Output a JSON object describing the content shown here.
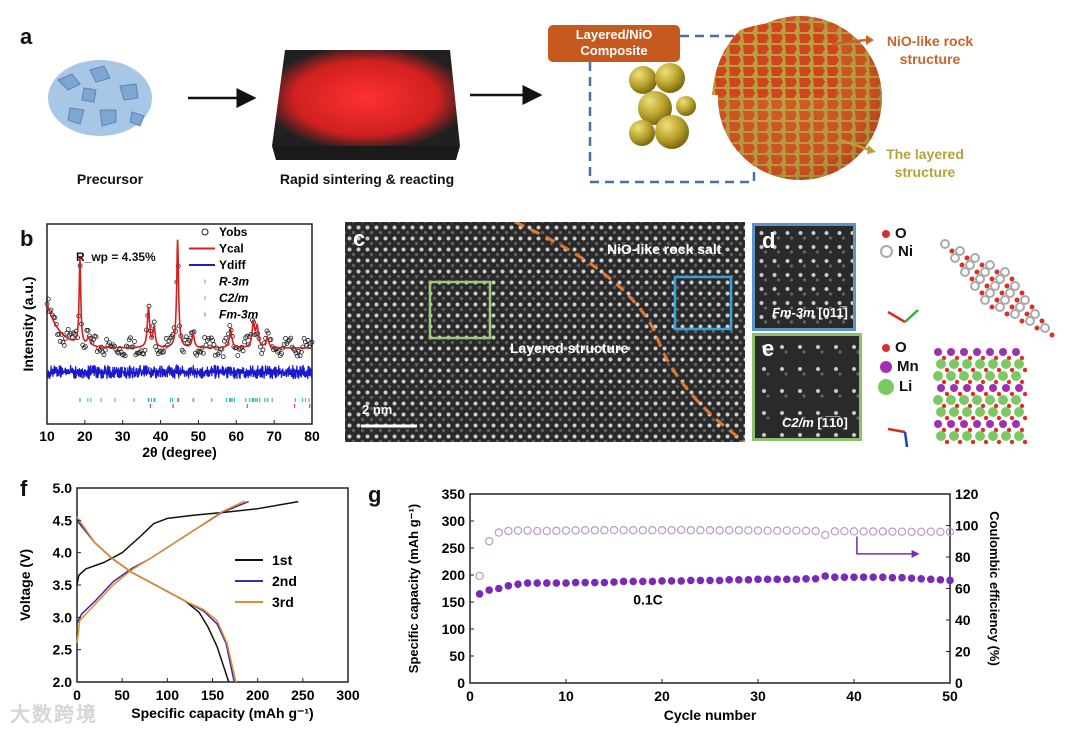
{
  "panels": {
    "a": "a",
    "b": "b",
    "c": "c",
    "d": "d",
    "e": "e",
    "f": "f",
    "g": "g"
  },
  "panel_a": {
    "precursor": "Precursor",
    "sintering": "Rapid sintering & reacting",
    "composite_box": [
      "Layered/NiO",
      "Composite"
    ],
    "rock_label": [
      "NiO-like rock",
      "structure"
    ],
    "layered_label": [
      "The layered",
      "structure"
    ],
    "colors": {
      "box": "#c65a1e",
      "rock": "#c8642a",
      "layered": "#b5a23a",
      "dash": "#4a6fa5"
    }
  },
  "panel_c": {
    "rock_salt": "NiO-like rock salt",
    "layered": "Layered structure",
    "scale": "2 nm"
  },
  "panel_d": {
    "label_group": "Fm-3m",
    "label_zone": "[011̅]",
    "legend": [
      {
        "name": "O",
        "color": "#d9302a"
      },
      {
        "name": "Ni",
        "color": "#bdbdbd"
      }
    ]
  },
  "panel_e": {
    "label_group": "C2/m",
    "label_zone": "[1̅1̅0]",
    "legend": [
      {
        "name": "O",
        "color": "#d9302a"
      },
      {
        "name": "Mn",
        "color": "#a030b0"
      },
      {
        "name": "Li",
        "color": "#7cc964"
      }
    ]
  },
  "chart_data": [
    {
      "id": "b",
      "type": "line",
      "xlabel": "2θ (degree)",
      "ylabel": "Intensity (a.u.)",
      "xlim": [
        10,
        80
      ],
      "xticks": [
        10,
        20,
        30,
        40,
        50,
        60,
        70,
        80
      ],
      "annotation": "R_wp = 4.35%",
      "annotation_main": "R",
      "annotation_sub": "wp",
      "annotation_rest": "= 4.35%",
      "legend": [
        {
          "name": "Yobs",
          "color": "#222222",
          "style": "circle"
        },
        {
          "name": "Ycal",
          "color": "#d42020",
          "style": "line"
        },
        {
          "name": "Ydiff",
          "color": "#1a1acc",
          "style": "line"
        },
        {
          "name": "R-3m",
          "color": "#888888",
          "style": "tick"
        },
        {
          "name": "C2/m",
          "color": "#30c0d0",
          "style": "tick"
        },
        {
          "name": "Fm-3m",
          "color": "#d040a0",
          "style": "tick"
        }
      ],
      "background": {
        "base": 38,
        "start": 60,
        "decay": 3.5
      },
      "peaks": [
        [
          18.7,
          44,
          0.25
        ],
        [
          21,
          4,
          0.5
        ],
        [
          36.8,
          20,
          0.35
        ],
        [
          38.3,
          10,
          0.35
        ],
        [
          44.5,
          54,
          0.3
        ],
        [
          48.6,
          7,
          0.35
        ],
        [
          58.5,
          9,
          0.4
        ],
        [
          64.5,
          12,
          0.4
        ],
        [
          65.5,
          10,
          0.4
        ],
        [
          68.2,
          5,
          0.4
        ]
      ],
      "diff_level": 26,
      "ticks_R3m": [
        18.7,
        36.8,
        38.3,
        44.5,
        48.6,
        58.5,
        64.5,
        65.5,
        68.2
      ],
      "ticks_C2m": [
        20.8,
        21.6,
        24.3,
        28,
        33,
        36.9,
        37.6,
        38.5,
        42.6,
        43.2,
        44.8,
        48.7,
        53.5,
        57.4,
        58.2,
        58.9,
        59.5,
        62.5,
        63.5,
        64.2,
        65,
        66.2,
        67.5,
        68.3,
        69.5,
        75.6,
        77.5,
        78.3,
        79.2
      ],
      "ticks_Fm3m": [
        37.3,
        43.3,
        62.9,
        75.4,
        79.4
      ]
    },
    {
      "id": "f",
      "type": "line",
      "xlabel": "Specific capacity (mAh g⁻¹)",
      "ylabel": "Voltage (V)",
      "xlim": [
        0,
        300
      ],
      "ylim": [
        2.0,
        5.0
      ],
      "xticks": [
        0,
        50,
        100,
        150,
        200,
        250,
        300
      ],
      "yticks": [
        "2.0",
        "2.5",
        "3.0",
        "3.5",
        "4.0",
        "4.5",
        "5.0"
      ],
      "series": [
        {
          "name": "1st",
          "color": "#111111",
          "charge": [
            [
              0,
              3.5
            ],
            [
              2,
              3.65
            ],
            [
              10,
              3.75
            ],
            [
              30,
              3.85
            ],
            [
              50,
              4.0
            ],
            [
              70,
              4.25
            ],
            [
              85,
              4.45
            ],
            [
              100,
              4.53
            ],
            [
              130,
              4.58
            ],
            [
              160,
              4.62
            ],
            [
              200,
              4.68
            ],
            [
              245,
              4.79
            ]
          ],
          "discharge": [
            [
              0,
              4.5
            ],
            [
              20,
              4.15
            ],
            [
              40,
              3.9
            ],
            [
              60,
              3.7
            ],
            [
              80,
              3.55
            ],
            [
              100,
              3.4
            ],
            [
              120,
              3.25
            ],
            [
              135,
              3.08
            ],
            [
              145,
              2.85
            ],
            [
              155,
              2.55
            ],
            [
              168,
              2.0
            ]
          ]
        },
        {
          "name": "2nd",
          "color": "#3a2ab0",
          "charge": [
            [
              0,
              2.9
            ],
            [
              5,
              3.05
            ],
            [
              20,
              3.25
            ],
            [
              40,
              3.55
            ],
            [
              60,
              3.75
            ],
            [
              80,
              3.9
            ],
            [
              100,
              4.08
            ],
            [
              130,
              4.35
            ],
            [
              160,
              4.62
            ],
            [
              190,
              4.79
            ]
          ],
          "discharge": [
            [
              0,
              4.5
            ],
            [
              20,
              4.15
            ],
            [
              40,
              3.9
            ],
            [
              60,
              3.7
            ],
            [
              80,
              3.55
            ],
            [
              100,
              3.4
            ],
            [
              120,
              3.25
            ],
            [
              140,
              3.1
            ],
            [
              155,
              2.9
            ],
            [
              165,
              2.6
            ],
            [
              174,
              2.0
            ]
          ]
        },
        {
          "name": "3rd",
          "color": "#e0902a",
          "charge": [
            [
              0,
              2.6
            ],
            [
              3,
              2.95
            ],
            [
              20,
              3.2
            ],
            [
              40,
              3.5
            ],
            [
              60,
              3.73
            ],
            [
              80,
              3.9
            ],
            [
              100,
              4.08
            ],
            [
              130,
              4.35
            ],
            [
              160,
              4.63
            ],
            [
              186,
              4.8
            ]
          ],
          "discharge": [
            [
              0,
              4.55
            ],
            [
              20,
              4.15
            ],
            [
              40,
              3.9
            ],
            [
              60,
              3.7
            ],
            [
              80,
              3.55
            ],
            [
              100,
              3.4
            ],
            [
              120,
              3.25
            ],
            [
              140,
              3.12
            ],
            [
              155,
              2.95
            ],
            [
              166,
              2.6
            ],
            [
              176,
              2.0
            ]
          ]
        }
      ]
    },
    {
      "id": "g",
      "type": "scatter",
      "xlabel": "Cycle number",
      "ylabel": "Specific capacity (mAh g⁻¹)",
      "y2label": "Coulombic efficiency (%)",
      "xlim": [
        0,
        50
      ],
      "ylim": [
        0,
        350
      ],
      "y2lim": [
        0,
        120
      ],
      "xticks": [
        0,
        10,
        20,
        30,
        40,
        50
      ],
      "yticks": [
        0,
        50,
        100,
        150,
        200,
        250,
        300,
        350
      ],
      "y2ticks": [
        0,
        20,
        40,
        60,
        80,
        100,
        120
      ],
      "annotation": "0.1C",
      "capacity_color": "#7a2ab8",
      "ce_color": "#b89ac8",
      "cycles": [
        1,
        2,
        3,
        4,
        5,
        6,
        7,
        8,
        9,
        10,
        11,
        12,
        13,
        14,
        15,
        16,
        17,
        18,
        19,
        20,
        21,
        22,
        23,
        24,
        25,
        26,
        27,
        28,
        29,
        30,
        31,
        32,
        33,
        34,
        35,
        36,
        37,
        38,
        39,
        40,
        41,
        42,
        43,
        44,
        45,
        46,
        47,
        48,
        49,
        50
      ],
      "capacity": [
        165,
        172,
        175,
        180,
        183,
        185,
        185,
        185,
        185,
        185,
        186,
        186,
        186,
        186,
        187,
        188,
        188,
        188,
        188,
        189,
        189,
        189,
        190,
        190,
        190,
        190,
        191,
        191,
        191,
        192,
        192,
        192,
        192,
        192,
        193,
        193,
        198,
        196,
        196,
        196,
        196,
        196,
        196,
        195,
        195,
        194,
        193,
        192,
        191,
        190
      ],
      "ce": [
        68,
        90,
        95.5,
        96.5,
        96.8,
        96.8,
        96.5,
        96.5,
        96.6,
        96.8,
        96.9,
        97,
        97,
        97,
        97.1,
        97,
        97,
        97,
        97,
        97,
        97,
        97.2,
        97,
        97,
        97,
        96.9,
        97,
        97,
        96.9,
        96.8,
        96.7,
        96.7,
        96.8,
        96.8,
        96.6,
        96.5,
        94,
        96.3,
        96.4,
        96.3,
        96.2,
        96.2,
        96.2,
        96.1,
        96.1,
        96,
        96,
        96.1,
        96,
        96
      ]
    }
  ],
  "watermark": "大数跨境"
}
